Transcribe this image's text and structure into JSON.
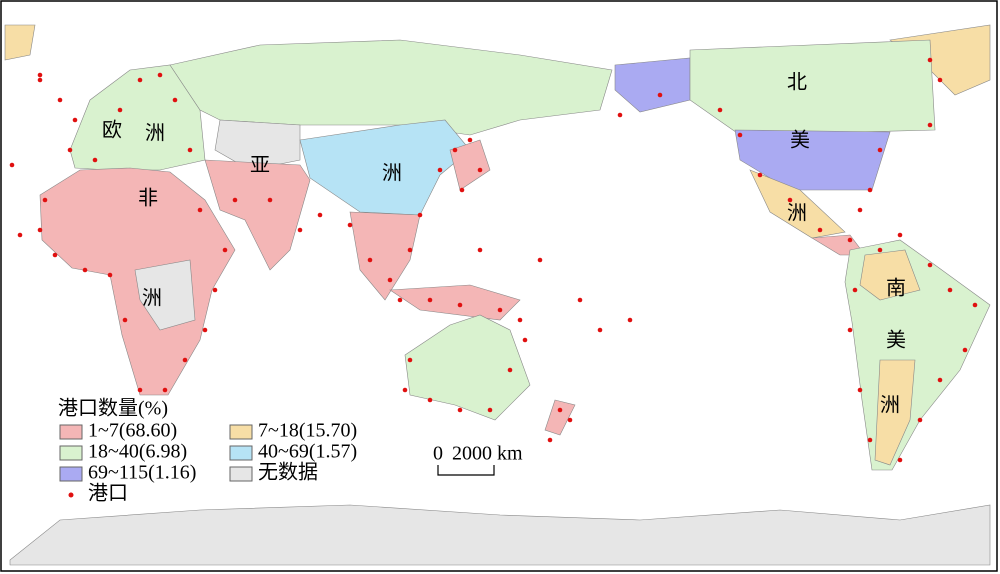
{
  "map": {
    "continent_labels": {
      "europe": [
        "欧",
        "洲"
      ],
      "africa": [
        "非",
        "洲"
      ],
      "asia": [
        "亚",
        "洲"
      ],
      "north_america": [
        "北",
        "美",
        "洲"
      ],
      "south_america": [
        "南",
        "美",
        "洲"
      ]
    },
    "legend": {
      "title": "港口数量(%)",
      "items": [
        {
          "label": "1~7(68.60)",
          "color": "#f4b6b6"
        },
        {
          "label": "18~40(6.98)",
          "color": "#d9f2cf"
        },
        {
          "label": "69~115(1.16)",
          "color": "#aaaaf2"
        },
        {
          "label": "7~18(15.70)",
          "color": "#f7dea6"
        },
        {
          "label": "40~69(1.57)",
          "color": "#b6e3f5"
        },
        {
          "label": "无数据",
          "color": "#e6e6e6"
        }
      ],
      "port_label": "港口",
      "port_color": "#e01010"
    },
    "scale_bar": {
      "start": "0",
      "end": "2000 km"
    }
  }
}
